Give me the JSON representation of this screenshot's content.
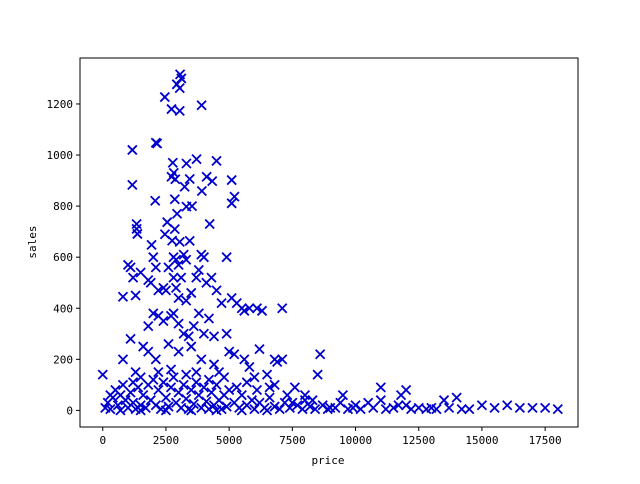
{
  "chart_data": {
    "type": "scatter",
    "title": "",
    "xlabel": "price",
    "ylabel": "sales",
    "xlim": [
      -900,
      18800
    ],
    "ylim": [
      -65,
      1380
    ],
    "xticks": [
      0,
      2500,
      5000,
      7500,
      10000,
      12500,
      15000,
      17500
    ],
    "yticks": [
      0,
      200,
      400,
      600,
      800,
      1000,
      1200
    ],
    "grid": false,
    "marker": "x",
    "color": "#0000cc",
    "points": [
      [
        3060,
        1316
      ],
      [
        3110,
        1300
      ],
      [
        2930,
        1277
      ],
      [
        3045,
        1262
      ],
      [
        2455,
        1227
      ],
      [
        2720,
        1180
      ],
      [
        3045,
        1173
      ],
      [
        3910,
        1195
      ],
      [
        2100,
        1048
      ],
      [
        2150,
        1045
      ],
      [
        1170,
        1020
      ],
      [
        2770,
        970
      ],
      [
        3310,
        967
      ],
      [
        3710,
        984
      ],
      [
        4500,
        977
      ],
      [
        2720,
        915
      ],
      [
        2810,
        930
      ],
      [
        3440,
        906
      ],
      [
        4110,
        915
      ],
      [
        4330,
        898
      ],
      [
        5100,
        902
      ],
      [
        1170,
        883
      ],
      [
        2870,
        905
      ],
      [
        3240,
        876
      ],
      [
        3920,
        859
      ],
      [
        5210,
        837
      ],
      [
        5100,
        811
      ],
      [
        2075,
        821
      ],
      [
        2850,
        827
      ],
      [
        3310,
        798
      ],
      [
        3530,
        800
      ],
      [
        2940,
        770
      ],
      [
        2550,
        737
      ],
      [
        4230,
        730
      ],
      [
        1340,
        730
      ],
      [
        1340,
        711
      ],
      [
        1370,
        691
      ],
      [
        2850,
        710
      ],
      [
        2460,
        690
      ],
      [
        2745,
        665
      ],
      [
        3045,
        660
      ],
      [
        3440,
        664
      ],
      [
        1930,
        648
      ],
      [
        1000,
        570
      ],
      [
        800,
        445
      ],
      [
        1100,
        560
      ],
      [
        1200,
        520
      ],
      [
        1300,
        450
      ],
      [
        1500,
        540
      ],
      [
        1800,
        510
      ],
      [
        1900,
        500
      ],
      [
        2000,
        600
      ],
      [
        2100,
        560
      ],
      [
        2200,
        470
      ],
      [
        2400,
        480
      ],
      [
        2500,
        470
      ],
      [
        2600,
        560
      ],
      [
        2800,
        600
      ],
      [
        2900,
        590
      ],
      [
        3000,
        570
      ],
      [
        3100,
        520
      ],
      [
        3200,
        610
      ],
      [
        3300,
        590
      ],
      [
        2800,
        520
      ],
      [
        2900,
        480
      ],
      [
        3000,
        440
      ],
      [
        3300,
        430
      ],
      [
        3500,
        460
      ],
      [
        3700,
        520
      ],
      [
        3800,
        550
      ],
      [
        3900,
        610
      ],
      [
        4000,
        600
      ],
      [
        4100,
        500
      ],
      [
        4300,
        520
      ],
      [
        4500,
        470
      ],
      [
        4900,
        600
      ],
      [
        5100,
        440
      ],
      [
        5300,
        420
      ],
      [
        5500,
        400
      ],
      [
        5800,
        400
      ],
      [
        6100,
        400
      ],
      [
        6300,
        390
      ],
      [
        7100,
        400
      ],
      [
        5600,
        390
      ],
      [
        4700,
        420
      ],
      [
        1100,
        280
      ],
      [
        1800,
        330
      ],
      [
        2000,
        380
      ],
      [
        2200,
        370
      ],
      [
        2400,
        350
      ],
      [
        2700,
        370
      ],
      [
        2800,
        380
      ],
      [
        3000,
        340
      ],
      [
        3200,
        300
      ],
      [
        3400,
        290
      ],
      [
        3600,
        330
      ],
      [
        3800,
        380
      ],
      [
        4000,
        300
      ],
      [
        4200,
        360
      ],
      [
        4400,
        290
      ],
      [
        4900,
        300
      ],
      [
        5000,
        230
      ],
      [
        5200,
        220
      ],
      [
        5600,
        200
      ],
      [
        6200,
        240
      ],
      [
        6800,
        200
      ],
      [
        6900,
        190
      ],
      [
        8600,
        220
      ],
      [
        8500,
        140
      ],
      [
        5800,
        170
      ],
      [
        6000,
        130
      ],
      [
        6500,
        140
      ],
      [
        7100,
        200
      ],
      [
        7600,
        90
      ],
      [
        1600,
        250
      ],
      [
        1800,
        230
      ],
      [
        2100,
        200
      ],
      [
        2600,
        260
      ],
      [
        3000,
        230
      ],
      [
        3500,
        250
      ],
      [
        3900,
        200
      ],
      [
        4400,
        180
      ],
      [
        4600,
        150
      ],
      [
        800,
        200
      ],
      [
        1300,
        150
      ],
      [
        500,
        80
      ],
      [
        0,
        140
      ],
      [
        700,
        60
      ],
      [
        1500,
        130
      ],
      [
        9500,
        60
      ],
      [
        11000,
        90
      ],
      [
        12000,
        80
      ],
      [
        11800,
        60
      ],
      [
        13500,
        40
      ],
      [
        14000,
        50
      ],
      [
        15000,
        20
      ],
      [
        16000,
        20
      ],
      [
        17000,
        10
      ],
      [
        17500,
        10
      ],
      [
        18000,
        5
      ],
      [
        16500,
        10
      ],
      [
        15500,
        10
      ],
      [
        14500,
        5
      ],
      [
        13000,
        10
      ],
      [
        12500,
        10
      ],
      [
        12000,
        20
      ],
      [
        11000,
        40
      ],
      [
        10500,
        30
      ],
      [
        10000,
        20
      ],
      [
        9000,
        10
      ],
      [
        8000,
        60
      ],
      [
        8000,
        40
      ],
      [
        7500,
        30
      ],
      [
        6600,
        90
      ],
      [
        6800,
        100
      ],
      [
        100,
        10
      ],
      [
        200,
        30
      ],
      [
        300,
        5
      ],
      [
        400,
        50
      ],
      [
        600,
        20
      ],
      [
        700,
        0
      ],
      [
        900,
        40
      ],
      [
        1000,
        10
      ],
      [
        1100,
        70
      ],
      [
        1200,
        30
      ],
      [
        1300,
        5
      ],
      [
        1400,
        90
      ],
      [
        1500,
        20
      ],
      [
        1600,
        60
      ],
      [
        1700,
        10
      ],
      [
        1800,
        100
      ],
      [
        1900,
        40
      ],
      [
        2000,
        120
      ],
      [
        2100,
        20
      ],
      [
        2200,
        80
      ],
      [
        2300,
        5
      ],
      [
        2400,
        110
      ],
      [
        2500,
        50
      ],
      [
        2600,
        15
      ],
      [
        2700,
        90
      ],
      [
        2800,
        130
      ],
      [
        2900,
        30
      ],
      [
        3000,
        70
      ],
      [
        3100,
        10
      ],
      [
        3200,
        100
      ],
      [
        3300,
        45
      ],
      [
        3400,
        5
      ],
      [
        3500,
        80
      ],
      [
        3600,
        25
      ],
      [
        3700,
        110
      ],
      [
        3800,
        60
      ],
      [
        3900,
        10
      ],
      [
        4000,
        90
      ],
      [
        4100,
        35
      ],
      [
        4200,
        5
      ],
      [
        4300,
        70
      ],
      [
        4400,
        20
      ],
      [
        4500,
        100
      ],
      [
        4600,
        40
      ],
      [
        4700,
        5
      ],
      [
        4800,
        60
      ],
      [
        4900,
        15
      ],
      [
        5000,
        80
      ],
      [
        5200,
        30
      ],
      [
        5400,
        10
      ],
      [
        5500,
        60
      ],
      [
        5700,
        20
      ],
      [
        5900,
        40
      ],
      [
        6000,
        5
      ],
      [
        6200,
        30
      ],
      [
        6400,
        10
      ],
      [
        6600,
        50
      ],
      [
        6800,
        15
      ],
      [
        7000,
        5
      ],
      [
        7200,
        30
      ],
      [
        7400,
        10
      ],
      [
        7700,
        20
      ],
      [
        7900,
        5
      ],
      [
        8200,
        15
      ],
      [
        8400,
        5
      ],
      [
        8700,
        20
      ],
      [
        8900,
        5
      ],
      [
        9200,
        10
      ],
      [
        9400,
        30
      ],
      [
        9700,
        5
      ],
      [
        9900,
        10
      ],
      [
        10200,
        5
      ],
      [
        10700,
        10
      ],
      [
        11200,
        5
      ],
      [
        11500,
        10
      ],
      [
        11700,
        20
      ],
      [
        12200,
        5
      ],
      [
        12800,
        5
      ],
      [
        13200,
        5
      ],
      [
        13700,
        10
      ],
      [
        14200,
        5
      ],
      [
        1500,
        0
      ],
      [
        2500,
        0
      ],
      [
        3500,
        0
      ],
      [
        4500,
        0
      ],
      [
        5500,
        0
      ],
      [
        6500,
        0
      ],
      [
        300,
        60
      ],
      [
        800,
        100
      ],
      [
        1200,
        110
      ],
      [
        2200,
        150
      ],
      [
        2700,
        160
      ],
      [
        3300,
        140
      ],
      [
        3700,
        150
      ],
      [
        4200,
        120
      ],
      [
        4800,
        130
      ],
      [
        5300,
        90
      ],
      [
        5700,
        110
      ],
      [
        6100,
        80
      ],
      [
        7300,
        60
      ],
      [
        8300,
        40
      ]
    ]
  }
}
